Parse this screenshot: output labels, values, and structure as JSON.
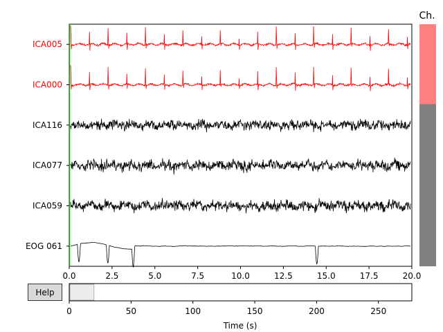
{
  "channels": [
    {
      "name": "ICA005",
      "color": "#ff0000"
    },
    {
      "name": "ICA000",
      "color": "#ff0000"
    },
    {
      "name": "ICA116",
      "color": "#000000"
    },
    {
      "name": "ICA077",
      "color": "#000000"
    },
    {
      "name": "ICA059",
      "color": "#000000"
    },
    {
      "name": "EOG 061",
      "color": "#000000"
    }
  ],
  "time_axis": {
    "ticks": [
      "0.0",
      "2.5",
      "5.0",
      "7.5",
      "10.0",
      "12.5",
      "15.0",
      "17.5",
      "20.0"
    ],
    "range": [
      0,
      20
    ]
  },
  "scrollbar": {
    "title": "Ch.",
    "selected_color": "#ff8080",
    "rest_color": "#808080",
    "selected_fraction": 0.33
  },
  "help": {
    "label": "Help"
  },
  "overview": {
    "ticks": [
      "0",
      "50",
      "100",
      "150",
      "200",
      "250"
    ],
    "range": [
      0,
      277
    ],
    "window": [
      0,
      20
    ],
    "xlabel": "Time (s)"
  }
}
